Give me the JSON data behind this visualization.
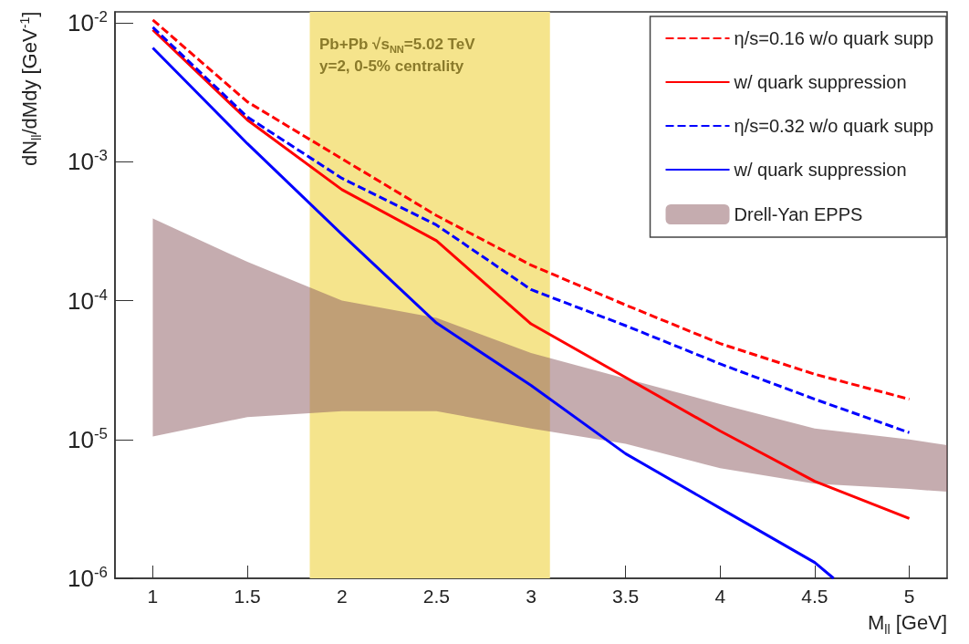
{
  "chart_data": {
    "type": "line",
    "xlabel": "M$_{ll}$ [GeV]",
    "ylabel": "dN$_{ll}$/dMdy [GeV$^{-1}$]",
    "annotations": [
      "Pb+Pb √s$_{NN}$=5.02 TeV",
      "y=2, 0-5% centrality"
    ],
    "log": "y",
    "xlim": [
      0.8,
      5.2
    ],
    "xticks": [
      1,
      1.5,
      2,
      2.5,
      3,
      3.5,
      4,
      4.5,
      5
    ],
    "ylim": [
      1e-06,
      0.012
    ],
    "yticks": [
      {
        "value": 1e-06,
        "label": "10$^{-6}$"
      },
      {
        "value": 1e-05,
        "label": "10$^{-5}$"
      },
      {
        "value": 0.0001,
        "label": "10$^{-4}$"
      },
      {
        "value": 0.001,
        "label": "10$^{-3}$"
      },
      {
        "value": 0.01,
        "label": "10$^{-2}$"
      }
    ],
    "grid": false,
    "legend": "top right",
    "marker": "none",
    "bands": [
      {
        "axis": "x",
        "from": 1.83,
        "to": 3.1,
        "color": "#f5e48c"
      }
    ],
    "series": [
      {
        "name": "η/s=0.16 w/o quark supp",
        "color": "#ff0000",
        "line_style": "dashed",
        "x": [
          1,
          1.5,
          2,
          2.5,
          3,
          3.5,
          4,
          4.5,
          5
        ],
        "values": [
          0.0105,
          0.0027,
          0.00105,
          0.00041,
          0.00018,
          9.3e-05,
          4.9e-05,
          2.95e-05,
          1.95e-05
        ]
      },
      {
        "name": "w/ quark suppression",
        "color": "#ff0000",
        "line_style": "solid",
        "x": [
          1,
          1.5,
          2,
          2.5,
          3,
          3.5,
          4,
          4.5,
          5
        ],
        "values": [
          0.0089,
          0.002,
          0.00063,
          0.00027,
          6.8e-05,
          2.8e-05,
          1.15e-05,
          5e-06,
          2.7e-06
        ]
      },
      {
        "name": "η/s=0.32 w/o quark supp",
        "color": "#0000ff",
        "line_style": "dashed",
        "x": [
          1,
          1.5,
          2,
          2.5,
          3,
          3.5,
          4,
          4.5,
          5
        ],
        "values": [
          0.0093,
          0.0021,
          0.00076,
          0.00035,
          0.00012,
          6.6e-05,
          3.5e-05,
          1.95e-05,
          1.12e-05
        ]
      },
      {
        "name": "w/ quark suppression",
        "color": "#0000ff",
        "line_style": "solid",
        "x": [
          1,
          1.5,
          2,
          2.5,
          3,
          3.5,
          4,
          4.5,
          4.6
        ],
        "values": [
          0.0066,
          0.00135,
          0.0003,
          6.9e-05,
          2.45e-05,
          7.9e-06,
          3.2e-06,
          1.3e-06,
          1e-06
        ]
      },
      {
        "name": "Drell-Yan EPPS",
        "type": "area",
        "color": "#8b5a5f",
        "x": [
          1,
          1.5,
          2,
          2.5,
          3,
          3.5,
          4,
          4.5,
          5,
          5.2
        ],
        "values": [
          null,
          null,
          null,
          null,
          null,
          null,
          null,
          null,
          null,
          null
        ],
        "lower": [
          1.05e-05,
          1.45e-05,
          1.6e-05,
          1.6e-05,
          1.2e-05,
          9.3e-06,
          6.2e-06,
          4.8e-06,
          4.4e-06,
          4.2e-06
        ],
        "upper": [
          0.00039,
          0.00019,
          0.0001,
          7.5e-05,
          4.2e-05,
          2.75e-05,
          1.8e-05,
          1.2e-05,
          1e-05,
          9.1e-06
        ]
      }
    ]
  }
}
